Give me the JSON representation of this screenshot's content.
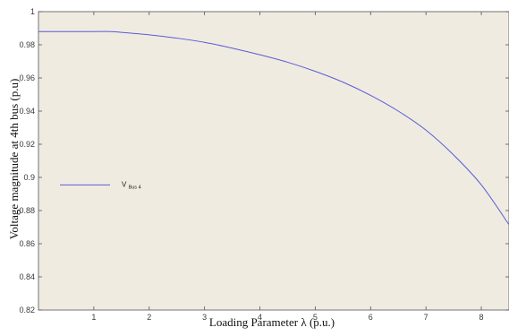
{
  "chart_data": {
    "type": "line",
    "title": "",
    "xlabel": "Loading Parameter λ (p.u.)",
    "ylabel": "Voltage magnitude at 4th bus (p.u)",
    "xlim": [
      0,
      8.5
    ],
    "ylim": [
      0.82,
      1.0
    ],
    "xticks": [
      1,
      2,
      3,
      4,
      5,
      6,
      7,
      8
    ],
    "yticks": [
      0.82,
      0.84,
      0.86,
      0.88,
      0.9,
      0.92,
      0.94,
      0.96,
      0.98,
      1
    ],
    "xtick_labels": [
      "1",
      "2",
      "3",
      "4",
      "5",
      "6",
      "7",
      "8"
    ],
    "ytick_labels": [
      "0.82",
      "0.84",
      "0.86",
      "0.88",
      "0.9",
      "0.92",
      "0.94",
      "0.96",
      "0.98",
      "1"
    ],
    "grid": false,
    "legend_position": "middle-left",
    "series": [
      {
        "name": "V",
        "name_subscript": "Bus 4",
        "color": "#5b5bd6",
        "x": [
          0,
          0.5,
          1.0,
          1.3,
          1.5,
          2.0,
          2.5,
          3.0,
          3.5,
          4.0,
          4.5,
          5.0,
          5.5,
          6.0,
          6.5,
          7.0,
          7.5,
          8.0,
          8.5
        ],
        "y": [
          0.988,
          0.988,
          0.988,
          0.988,
          0.9875,
          0.986,
          0.984,
          0.9815,
          0.978,
          0.974,
          0.9695,
          0.964,
          0.9575,
          0.9495,
          0.94,
          0.9285,
          0.9135,
          0.8955,
          0.8715
        ]
      }
    ]
  },
  "colors": {
    "plot_background": "#efebe1",
    "axis": "#555555",
    "line": "#5b5bd6"
  }
}
